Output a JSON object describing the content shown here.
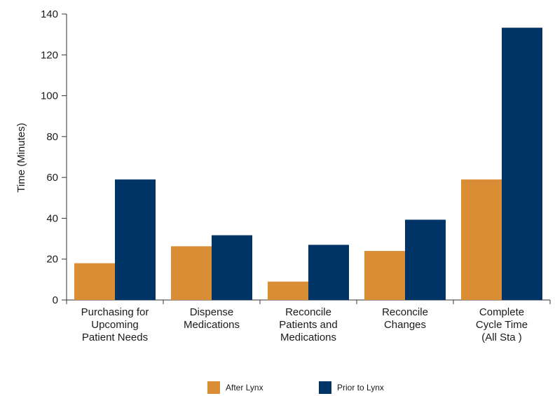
{
  "chart_data": {
    "type": "bar",
    "title": "",
    "xlabel": "",
    "ylabel": "Time (Minutes)",
    "ylim": [
      0,
      140
    ],
    "yticks": [
      0,
      20,
      40,
      60,
      80,
      100,
      120,
      140
    ],
    "grid": false,
    "legend_position": "bottom",
    "categories": [
      [
        "Purchasing for",
        "Upcoming",
        "Patient Needs"
      ],
      [
        "Dispense",
        "Medications"
      ],
      [
        "Reconcile",
        "Patients and",
        "Medications"
      ],
      [
        "Reconcile",
        "Changes"
      ],
      [
        "Complete",
        "Cycle Time",
        "(All Sta  )"
      ]
    ],
    "series": [
      {
        "name": "After Lynx",
        "color": "#D98E36",
        "values": [
          18,
          26.3,
          9,
          24,
          59
        ]
      },
      {
        "name": "Prior to Lynx",
        "color": "#003466",
        "values": [
          59,
          31.7,
          27,
          39.3,
          133.3
        ]
      }
    ]
  }
}
